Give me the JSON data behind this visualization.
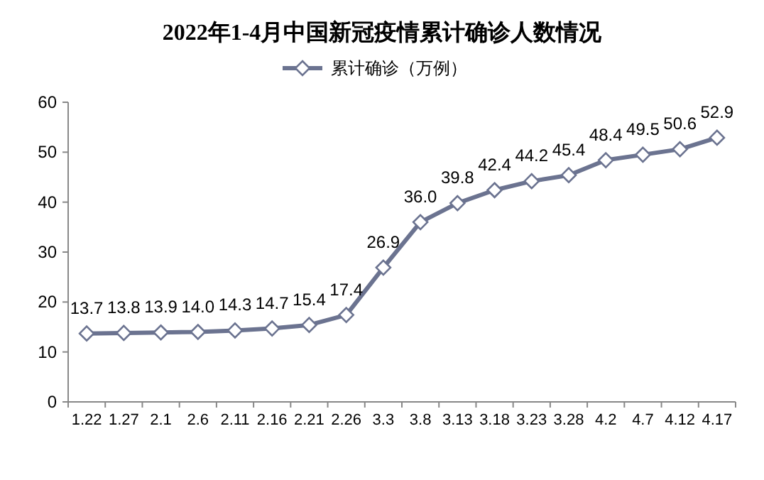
{
  "chart_data": {
    "type": "line",
    "title": "2022年1-4月中国新冠疫情累计确诊人数情况",
    "categories": [
      "1.22",
      "1.27",
      "2.1",
      "2.6",
      "2.11",
      "2.16",
      "2.21",
      "2.26",
      "3.3",
      "3.8",
      "3.13",
      "3.18",
      "3.23",
      "3.28",
      "4.2",
      "4.7",
      "4.12",
      "4.17"
    ],
    "series": [
      {
        "name": "累计确诊（万例）",
        "color": "#6b7390",
        "values": [
          13.7,
          13.8,
          13.9,
          14.0,
          14.3,
          14.7,
          15.4,
          17.4,
          26.9,
          36.0,
          39.8,
          42.4,
          44.2,
          45.4,
          48.4,
          49.5,
          50.6,
          52.9
        ],
        "value_labels": [
          "13.7",
          "13.8",
          "13.9",
          "14.0",
          "14.3",
          "14.7",
          "15.4",
          "17.4",
          "26.9",
          "36.0",
          "39.8",
          "42.4",
          "44.2",
          "45.4",
          "48.4",
          "49.5",
          "50.6",
          "52.9"
        ]
      }
    ],
    "ylim": [
      0,
      60
    ],
    "yticks": [
      0,
      10,
      20,
      30,
      40,
      50,
      60
    ],
    "grid": false,
    "legend": "top",
    "marker": "diamond",
    "line_style": "solid"
  }
}
